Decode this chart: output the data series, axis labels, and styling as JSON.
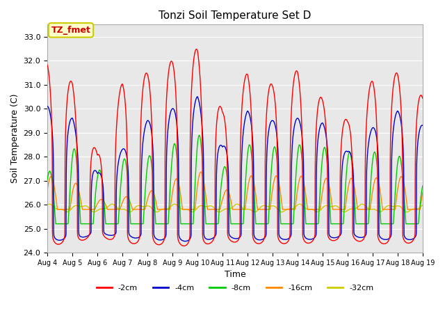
{
  "title": "Tonzi Soil Temperature Set D",
  "xlabel": "Time",
  "ylabel": "Soil Temperature (C)",
  "ylim": [
    24.0,
    33.5
  ],
  "xlim_days": [
    0,
    15
  ],
  "annotation": "TZ_fmet",
  "annotation_color": "#cc0000",
  "annotation_bg": "#ffffcc",
  "annotation_border": "#cccc00",
  "series": {
    "-2cm": {
      "color": "#ff0000",
      "lw": 1.0
    },
    "-4cm": {
      "color": "#0000cc",
      "lw": 1.0
    },
    "-8cm": {
      "color": "#00cc00",
      "lw": 1.0
    },
    "-16cm": {
      "color": "#ff8800",
      "lw": 1.0
    },
    "-32cm": {
      "color": "#cccc00",
      "lw": 1.0
    }
  },
  "xtick_labels": [
    "Aug 4",
    "Aug 5",
    "Aug 6",
    "Aug 7",
    "Aug 8",
    "Aug 9",
    "Aug 10",
    "Aug 11",
    "Aug 12",
    "Aug 13",
    "Aug 14",
    "Aug 15",
    "Aug 16",
    "Aug 17",
    "Aug 18",
    "Aug 19"
  ],
  "xtick_positions": [
    0,
    1,
    2,
    3,
    4,
    5,
    6,
    7,
    8,
    9,
    10,
    11,
    12,
    13,
    14,
    15
  ],
  "ytick_labels": [
    "24.0",
    "25.0",
    "26.0",
    "27.0",
    "28.0",
    "29.0",
    "30.0",
    "31.0",
    "32.0",
    "33.0"
  ],
  "ytick_positions": [
    24.0,
    25.0,
    26.0,
    27.0,
    28.0,
    29.0,
    30.0,
    31.0,
    32.0,
    33.0
  ],
  "grid_color": "#ffffff",
  "plot_bg": "#e8e8e8",
  "peak_heights_neg2": [
    31.9,
    31.1,
    28.1,
    31.1,
    31.5,
    32.0,
    32.5,
    29.9,
    31.5,
    31.0,
    31.6,
    30.4,
    29.5,
    31.2,
    31.5,
    30.5
  ],
  "peak_heights_neg4": [
    30.1,
    29.6,
    27.3,
    28.3,
    29.5,
    30.0,
    30.5,
    28.4,
    29.9,
    29.5,
    29.6,
    29.4,
    28.2,
    29.2,
    29.9,
    29.3
  ],
  "peak_heights_neg8": [
    27.3,
    28.4,
    27.4,
    27.9,
    28.0,
    28.5,
    29.0,
    27.5,
    28.5,
    28.4,
    28.5,
    28.4,
    28.2,
    28.2,
    28.1,
    27.0
  ],
  "peak_heights_neg16": [
    27.2,
    27.0,
    26.2,
    26.3,
    26.5,
    27.0,
    27.5,
    26.5,
    27.2,
    27.2,
    27.2,
    27.1,
    27.1,
    27.1,
    27.2,
    27.0
  ],
  "peak_heights_neg32": [
    25.9,
    25.8,
    25.4,
    25.3,
    25.3,
    25.5,
    25.8,
    25.8,
    25.9,
    25.95,
    25.95,
    25.9,
    25.9,
    25.9,
    25.95,
    25.9
  ],
  "min_temp": 25.0,
  "base_temp_neg32": 25.85
}
